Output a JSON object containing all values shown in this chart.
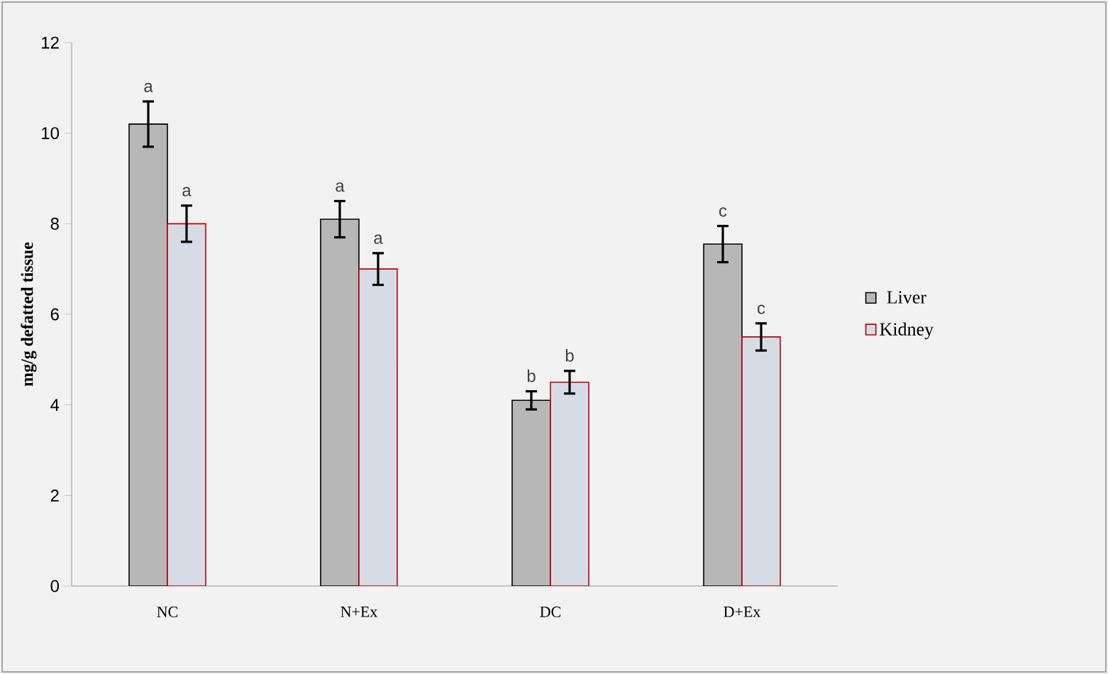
{
  "chart_data": {
    "type": "bar",
    "ylabel": "mg/g defatted tissue",
    "categories": [
      "NC",
      "N+Ex",
      "DC",
      "D+Ex"
    ],
    "series": [
      {
        "name": "Liver",
        "color": "#b7b7b7",
        "values": [
          10.2,
          8.1,
          4.1,
          7.55
        ],
        "errors": [
          0.5,
          0.4,
          0.2,
          0.4
        ]
      },
      {
        "name": "Kidney",
        "color": "#d6dce5",
        "values": [
          8.0,
          7.0,
          4.5,
          5.5
        ],
        "errors": [
          0.4,
          0.35,
          0.25,
          0.3
        ]
      }
    ],
    "ylim": [
      0,
      12
    ],
    "yticks": [
      0,
      2,
      4,
      6,
      8,
      10,
      12
    ],
    "legend": "right",
    "grid": false,
    "annotations": [
      "a",
      "a",
      "a",
      "a",
      "b",
      "b",
      "c",
      "c"
    ]
  }
}
